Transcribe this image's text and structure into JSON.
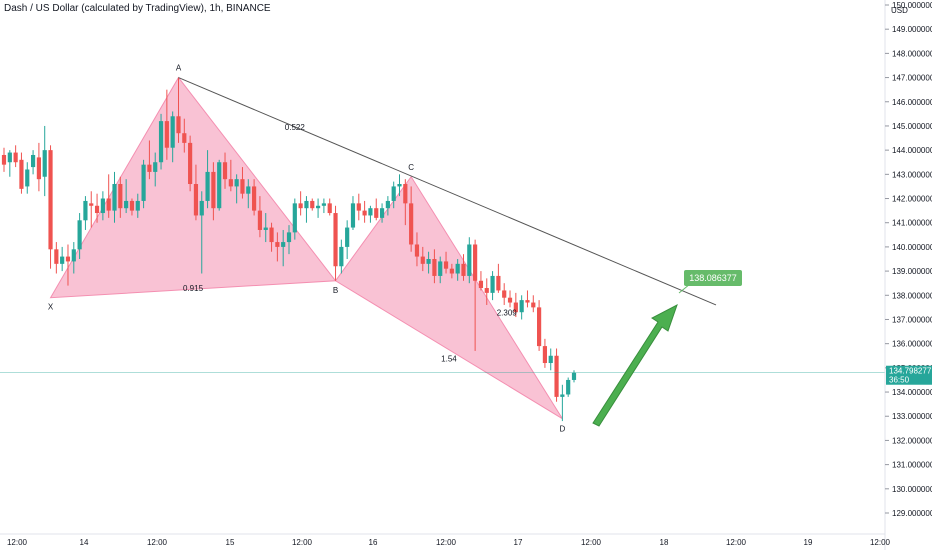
{
  "title": "Dash / US Dollar (calculated by TradingView), 1h, BINANCE",
  "currency": "USD",
  "colors": {
    "up": "#26a69a",
    "down": "#ef5350",
    "pattern_fill": "#f48fb1",
    "trendline": "#555555",
    "arrow": "#4caf50",
    "price_line": "#26a69a",
    "target_label": "#66bb6a"
  },
  "chart_data": {
    "type": "candlestick",
    "title": "Dash / US Dollar (calculated by TradingView), 1h, BINANCE",
    "ylim": [
      128.3,
      150.2
    ],
    "y_ticks": [
      "129.000000",
      "130.000000",
      "131.000000",
      "132.000000",
      "133.000000",
      "134.000000",
      "135.000000",
      "136.000000",
      "137.000000",
      "138.000000",
      "139.000000",
      "140.000000",
      "141.000000",
      "142.000000",
      "143.000000",
      "144.000000",
      "145.000000",
      "146.000000",
      "147.000000",
      "148.000000",
      "149.000000",
      "150.000000"
    ],
    "x_ticks": [
      "12:00",
      "14",
      "12:00",
      "15",
      "12:00",
      "16",
      "12:00",
      "17",
      "12:00",
      "18",
      "12:00",
      "19",
      "12:00"
    ],
    "candles": [
      [
        143.8,
        144.1,
        143.1,
        143.4
      ],
      [
        143.5,
        144.0,
        142.9,
        143.9
      ],
      [
        143.9,
        144.2,
        143.3,
        143.5
      ],
      [
        143.6,
        143.9,
        142.2,
        142.4
      ],
      [
        142.5,
        143.5,
        142.2,
        143.2
      ],
      [
        143.3,
        144.0,
        143.0,
        143.8
      ],
      [
        143.7,
        144.3,
        142.3,
        142.8
      ],
      [
        142.9,
        145.0,
        142.1,
        144.0
      ],
      [
        144.0,
        144.2,
        139.1,
        139.9
      ],
      [
        139.9,
        140.2,
        138.9,
        139.3
      ],
      [
        139.3,
        140.0,
        139.0,
        139.6
      ],
      [
        139.6,
        140.1,
        138.4,
        139.4
      ],
      [
        139.4,
        140.2,
        138.9,
        139.9
      ],
      [
        139.9,
        141.4,
        139.5,
        141.1
      ],
      [
        141.1,
        142.1,
        140.7,
        141.9
      ],
      [
        141.8,
        142.3,
        140.8,
        141.7
      ],
      [
        141.7,
        142.2,
        141.0,
        141.4
      ],
      [
        141.4,
        142.3,
        141.1,
        142.0
      ],
      [
        142.0,
        143.0,
        141.2,
        141.5
      ],
      [
        141.5,
        143.1,
        141.0,
        142.6
      ],
      [
        142.6,
        142.9,
        141.2,
        141.6
      ],
      [
        141.6,
        142.8,
        141.4,
        141.9
      ],
      [
        141.9,
        142.0,
        141.3,
        141.5
      ],
      [
        141.5,
        142.2,
        141.2,
        141.9
      ],
      [
        141.9,
        143.6,
        141.6,
        143.4
      ],
      [
        143.4,
        144.4,
        142.8,
        143.1
      ],
      [
        143.1,
        143.9,
        142.5,
        143.5
      ],
      [
        143.5,
        145.5,
        143.2,
        145.2
      ],
      [
        145.2,
        146.5,
        143.6,
        144.1
      ],
      [
        144.1,
        145.6,
        143.5,
        145.4
      ],
      [
        145.4,
        147.0,
        144.3,
        144.7
      ],
      [
        144.7,
        145.3,
        143.9,
        144.3
      ],
      [
        144.3,
        144.6,
        142.3,
        142.6
      ],
      [
        142.6,
        143.4,
        141.1,
        141.3
      ],
      [
        141.3,
        142.3,
        138.9,
        141.9
      ],
      [
        141.9,
        144.0,
        141.6,
        143.1
      ],
      [
        143.1,
        143.5,
        141.1,
        141.6
      ],
      [
        141.6,
        143.6,
        141.5,
        143.5
      ],
      [
        143.5,
        143.9,
        142.4,
        142.8
      ],
      [
        142.8,
        143.6,
        142.3,
        142.5
      ],
      [
        142.5,
        143.0,
        141.8,
        142.8
      ],
      [
        142.8,
        143.3,
        142.0,
        142.2
      ],
      [
        142.2,
        142.8,
        141.6,
        142.5
      ],
      [
        142.5,
        142.8,
        141.3,
        141.5
      ],
      [
        141.5,
        142.1,
        140.4,
        140.7
      ],
      [
        140.7,
        141.4,
        140.2,
        140.8
      ],
      [
        140.8,
        141.0,
        139.8,
        140.2
      ],
      [
        140.2,
        140.6,
        139.4,
        140.0
      ],
      [
        140.0,
        140.7,
        139.2,
        140.2
      ],
      [
        140.2,
        140.9,
        139.7,
        140.6
      ],
      [
        140.6,
        142.0,
        140.3,
        141.8
      ],
      [
        141.8,
        142.3,
        141.3,
        141.6
      ],
      [
        141.6,
        142.1,
        141.0,
        141.9
      ],
      [
        141.9,
        142.0,
        141.5,
        141.6
      ],
      [
        141.6,
        142.0,
        141.2,
        141.7
      ],
      [
        141.7,
        142.0,
        141.4,
        141.8
      ],
      [
        141.8,
        142.0,
        141.3,
        141.4
      ],
      [
        141.4,
        141.7,
        138.6,
        139.2
      ],
      [
        139.2,
        140.3,
        138.9,
        140.0
      ],
      [
        140.0,
        141.1,
        139.5,
        140.8
      ],
      [
        140.8,
        142.1,
        140.7,
        141.8
      ],
      [
        141.8,
        142.2,
        141.1,
        141.5
      ],
      [
        141.5,
        141.9,
        141.0,
        141.3
      ],
      [
        141.3,
        141.7,
        141.0,
        141.6
      ],
      [
        141.6,
        142.0,
        141.1,
        141.2
      ],
      [
        141.2,
        141.8,
        141.0,
        141.6
      ],
      [
        141.6,
        142.1,
        141.3,
        141.9
      ],
      [
        141.9,
        142.7,
        141.6,
        142.5
      ],
      [
        142.5,
        143.0,
        142.1,
        142.6
      ],
      [
        142.6,
        142.8,
        140.9,
        141.8
      ],
      [
        141.8,
        142.5,
        139.8,
        140.1
      ],
      [
        140.1,
        140.6,
        139.2,
        139.6
      ],
      [
        139.6,
        140.0,
        139.0,
        139.3
      ],
      [
        139.3,
        139.8,
        138.9,
        139.5
      ],
      [
        139.5,
        139.9,
        138.5,
        138.8
      ],
      [
        138.8,
        139.6,
        138.5,
        139.4
      ],
      [
        139.4,
        139.8,
        138.9,
        139.1
      ],
      [
        139.1,
        139.3,
        138.7,
        138.9
      ],
      [
        138.9,
        139.5,
        138.6,
        139.3
      ],
      [
        139.3,
        139.7,
        138.6,
        138.8
      ],
      [
        138.8,
        140.4,
        138.5,
        140.1
      ],
      [
        140.1,
        140.3,
        135.7,
        138.6
      ],
      [
        138.6,
        139.0,
        138.2,
        138.3
      ],
      [
        138.3,
        138.7,
        137.6,
        138.1
      ],
      [
        138.1,
        139.0,
        137.8,
        138.8
      ],
      [
        138.8,
        139.3,
        138.1,
        138.2
      ],
      [
        138.2,
        138.5,
        137.6,
        137.9
      ],
      [
        137.9,
        138.2,
        137.5,
        137.7
      ],
      [
        137.7,
        138.1,
        137.1,
        137.3
      ],
      [
        137.3,
        138.0,
        137.0,
        137.8
      ],
      [
        137.8,
        138.2,
        137.5,
        137.7
      ],
      [
        137.7,
        138.0,
        137.3,
        137.5
      ],
      [
        137.5,
        137.8,
        135.7,
        135.9
      ],
      [
        135.9,
        136.2,
        135.0,
        135.2
      ],
      [
        135.2,
        135.8,
        134.9,
        135.5
      ],
      [
        135.5,
        135.8,
        133.6,
        133.8
      ],
      [
        133.8,
        134.3,
        132.8,
        133.9
      ],
      [
        133.9,
        134.6,
        133.8,
        134.5
      ],
      [
        134.5,
        134.9,
        134.4,
        134.8
      ]
    ],
    "pattern": {
      "points": [
        {
          "label": "X",
          "value": 137.9
        },
        {
          "label": "A",
          "value": 147.0
        },
        {
          "label": "B",
          "value": 138.6
        },
        {
          "label": "C",
          "value": 142.9
        },
        {
          "label": "D",
          "value": 132.9
        }
      ],
      "ratios": {
        "XB": "0.915",
        "AC": "0.522",
        "BD": "1.54",
        "CD": "2.309"
      }
    },
    "trendline": {
      "from": 147.0,
      "to": 137.6
    },
    "current_price": {
      "value": "134.798277",
      "countdown": "36:50"
    },
    "target": {
      "value": "138.086377"
    }
  }
}
